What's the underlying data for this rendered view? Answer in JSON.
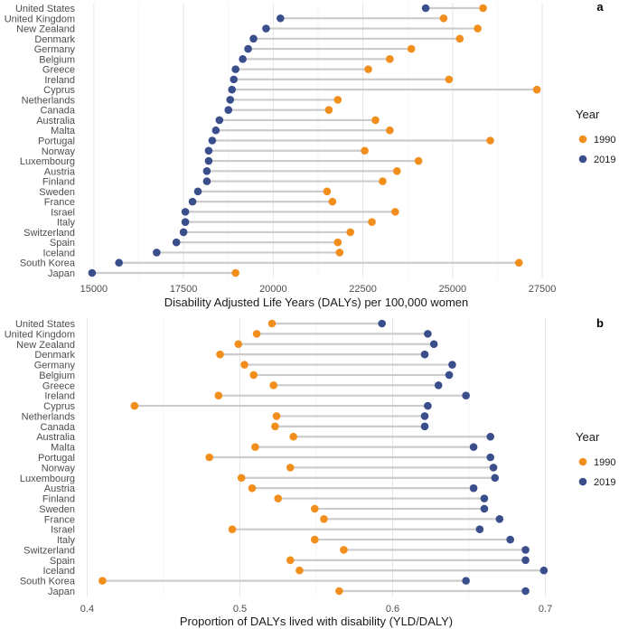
{
  "colors": {
    "y1990": "#F28E1C",
    "y2019": "#3B4E8C",
    "segment": "#cccccc",
    "grid": "#e6e6e6"
  },
  "chart_data": [
    {
      "type": "dumbbell",
      "panel": "a",
      "xlabel": "Disability Adjusted Life Years (DALYs) per 100,000 women",
      "xlim": [
        14600,
        27800
      ],
      "xticks": [
        15000,
        17500,
        20000,
        22500,
        25000,
        27500
      ],
      "xtick_labels": [
        "15000",
        "17500",
        "20000",
        "22500",
        "25000",
        "27500"
      ],
      "grid": true,
      "legend": {
        "title": "Year",
        "position": "right",
        "entries": [
          "1990",
          "2019"
        ]
      },
      "categories": [
        "United States",
        "United Kingdom",
        "New Zealand",
        "Denmark",
        "Germany",
        "Belgium",
        "Greece",
        "Ireland",
        "Cyprus",
        "Netherlands",
        "Canada",
        "Australia",
        "Malta",
        "Portugal",
        "Norway",
        "Luxembourg",
        "Austria",
        "Finland",
        "Sweden",
        "France",
        "Israel",
        "Italy",
        "Switzerland",
        "Spain",
        "Iceland",
        "South Korea",
        "Japan"
      ],
      "series": [
        {
          "name": "1990",
          "values": [
            25850,
            24750,
            25700,
            25200,
            23850,
            23250,
            22650,
            24900,
            27350,
            21800,
            21550,
            22850,
            23250,
            26050,
            22550,
            24050,
            23450,
            23050,
            21500,
            21650,
            23400,
            22750,
            22150,
            21800,
            21850,
            26850,
            18950
          ]
        },
        {
          "name": "2019",
          "values": [
            24250,
            20200,
            19800,
            19450,
            19300,
            19150,
            18950,
            18900,
            18850,
            18800,
            18750,
            18500,
            18400,
            18300,
            18200,
            18200,
            18150,
            18150,
            17900,
            17750,
            17550,
            17550,
            17500,
            17300,
            16750,
            15700,
            14950
          ]
        }
      ]
    },
    {
      "type": "dumbbell",
      "panel": "b",
      "xlabel": "Proportion of DALYs lived with disability (YLD/DALY)",
      "xlim": [
        0.395,
        0.705
      ],
      "xticks": [
        0.4,
        0.5,
        0.6,
        0.7
      ],
      "xtick_labels": [
        "0.4",
        "0.5",
        "0.6",
        "0.7"
      ],
      "grid": true,
      "legend": {
        "title": "Year",
        "position": "right",
        "entries": [
          "1990",
          "2019"
        ]
      },
      "categories": [
        "United States",
        "United Kingdom",
        "New Zealand",
        "Denmark",
        "Germany",
        "Belgium",
        "Greece",
        "Ireland",
        "Cyprus",
        "Netherlands",
        "Canada",
        "Australia",
        "Malta",
        "Portugal",
        "Norway",
        "Luxembourg",
        "Austria",
        "Finland",
        "Sweden",
        "France",
        "Israel",
        "Italy",
        "Switzerland",
        "Spain",
        "Iceland",
        "South Korea",
        "Japan"
      ],
      "series": [
        {
          "name": "1990",
          "values": [
            0.521,
            0.511,
            0.499,
            0.487,
            0.503,
            0.509,
            0.522,
            0.486,
            0.431,
            0.524,
            0.523,
            0.535,
            0.51,
            0.48,
            0.533,
            0.501,
            0.508,
            0.525,
            0.549,
            0.555,
            0.495,
            0.549,
            0.568,
            0.533,
            0.539,
            0.41,
            0.565
          ]
        },
        {
          "name": "2019",
          "values": [
            0.593,
            0.623,
            0.627,
            0.621,
            0.639,
            0.637,
            0.63,
            0.648,
            0.623,
            0.621,
            0.621,
            0.664,
            0.653,
            0.664,
            0.666,
            0.667,
            0.653,
            0.66,
            0.66,
            0.67,
            0.657,
            0.677,
            0.687,
            0.687,
            0.699,
            0.648,
            0.687
          ]
        }
      ]
    }
  ]
}
